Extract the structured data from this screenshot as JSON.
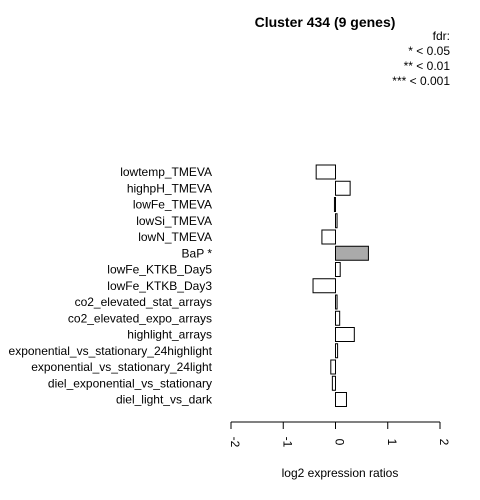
{
  "chart_data": {
    "type": "bar",
    "orientation": "horizontal",
    "title": "Cluster 434 (9 genes)",
    "legend": {
      "title": "fdr:",
      "entries": [
        "* < 0.05",
        "** < 0.01",
        "*** < 0.001"
      ],
      "placement": "top-right"
    },
    "xlabel": "log2 expression ratios",
    "xlim": [
      -2,
      2
    ],
    "xticks": [
      "-2",
      "-1",
      "0",
      "1",
      "2"
    ],
    "grid": false,
    "categories": [
      "lowtemp_TMEVA",
      "highpH_TMEVA",
      "lowFe_TMEVA",
      "lowSi_TMEVA",
      "lowN_TMEVA",
      "BaP *",
      "lowFe_KTKB_Day5",
      "lowFe_KTKB_Day3",
      "co2_elevated_stat_arrays",
      "co2_elevated_expo_arrays",
      "highlight_arrays",
      "exponential_vs_stationary_24highlight",
      "exponential_vs_stationary_24light",
      "diel_exponential_vs_stationary",
      "diel_light_vs_dark"
    ],
    "values": [
      -0.37,
      0.28,
      -0.02,
      0.03,
      -0.26,
      0.63,
      0.09,
      -0.43,
      0.03,
      0.08,
      0.36,
      0.04,
      -0.09,
      -0.06,
      0.21
    ],
    "highlighted": [
      false,
      false,
      false,
      false,
      false,
      true,
      false,
      false,
      false,
      false,
      false,
      false,
      false,
      false,
      false
    ],
    "colors": {
      "bar": "#ffffff",
      "highlight": "#aaaaaa",
      "stroke": "#000000"
    }
  }
}
